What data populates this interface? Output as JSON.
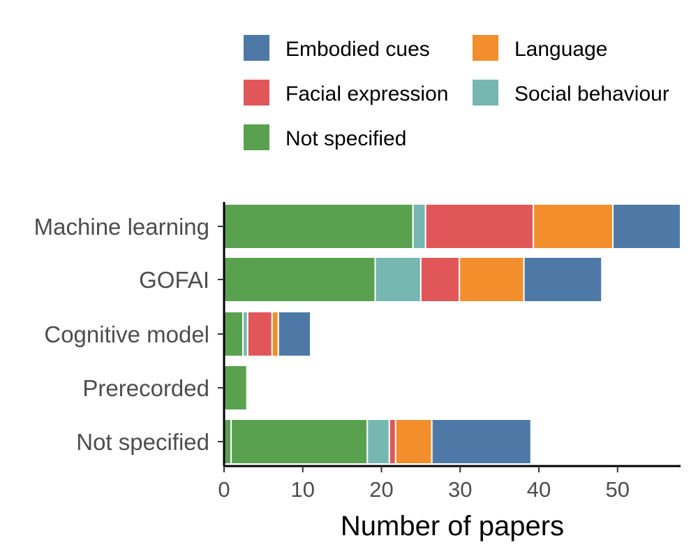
{
  "chart_data": {
    "type": "bar",
    "orientation": "horizontal",
    "stacked": true,
    "xlabel": "Number of papers",
    "ylabel": "",
    "xlim": [
      0,
      58
    ],
    "xticks": [
      0,
      10,
      20,
      30,
      40,
      50
    ],
    "grid": false,
    "legend_position": "top",
    "categories": [
      "Machine learning",
      "GOFAI",
      "Cognitive model",
      "Prerecorded",
      "Not specified"
    ],
    "legend": [
      {
        "name": "Embodied cues",
        "color": "#4e79a7"
      },
      {
        "name": "Language",
        "color": "#f28e2b"
      },
      {
        "name": "Facial expression",
        "color": "#e15759"
      },
      {
        "name": "Social behaviour",
        "color": "#76b7b2"
      },
      {
        "name": "Not specified",
        "color": "#59a14f"
      }
    ],
    "rows": [
      {
        "category": "Machine learning",
        "segments": [
          {
            "series": "Not specified",
            "value": 24
          },
          {
            "series": "Social behaviour",
            "value": 1.6
          },
          {
            "series": "Facial expression",
            "value": 13.7
          },
          {
            "series": "Language",
            "value": 10.1
          },
          {
            "series": "Embodied cues",
            "value": 8.6
          }
        ]
      },
      {
        "category": "GOFAI",
        "segments": [
          {
            "series": "Not specified",
            "value": 19.2
          },
          {
            "series": "Social behaviour",
            "value": 5.8
          },
          {
            "series": "Facial expression",
            "value": 4.9
          },
          {
            "series": "Language",
            "value": 8.2
          },
          {
            "series": "Embodied cues",
            "value": 9.9
          }
        ]
      },
      {
        "category": "Cognitive model",
        "segments": [
          {
            "series": "Not specified",
            "value": 2.4
          },
          {
            "series": "Social behaviour",
            "value": 0.6
          },
          {
            "series": "Facial expression",
            "value": 3.1
          },
          {
            "series": "Language",
            "value": 0.8
          },
          {
            "series": "Embodied cues",
            "value": 4.1
          }
        ]
      },
      {
        "category": "Prerecorded",
        "segments": [
          {
            "series": "Not specified",
            "value": 2.9
          }
        ]
      },
      {
        "category": "Not specified",
        "segments": [
          {
            "series": "Not specified",
            "value": 0.9
          },
          {
            "series": "Not specified",
            "value": 17.3
          },
          {
            "series": "Social behaviour",
            "value": 2.8
          },
          {
            "series": "Facial expression",
            "value": 0.8
          },
          {
            "series": "Language",
            "value": 4.6
          },
          {
            "series": "Embodied cues",
            "value": 12.6
          }
        ]
      }
    ]
  }
}
